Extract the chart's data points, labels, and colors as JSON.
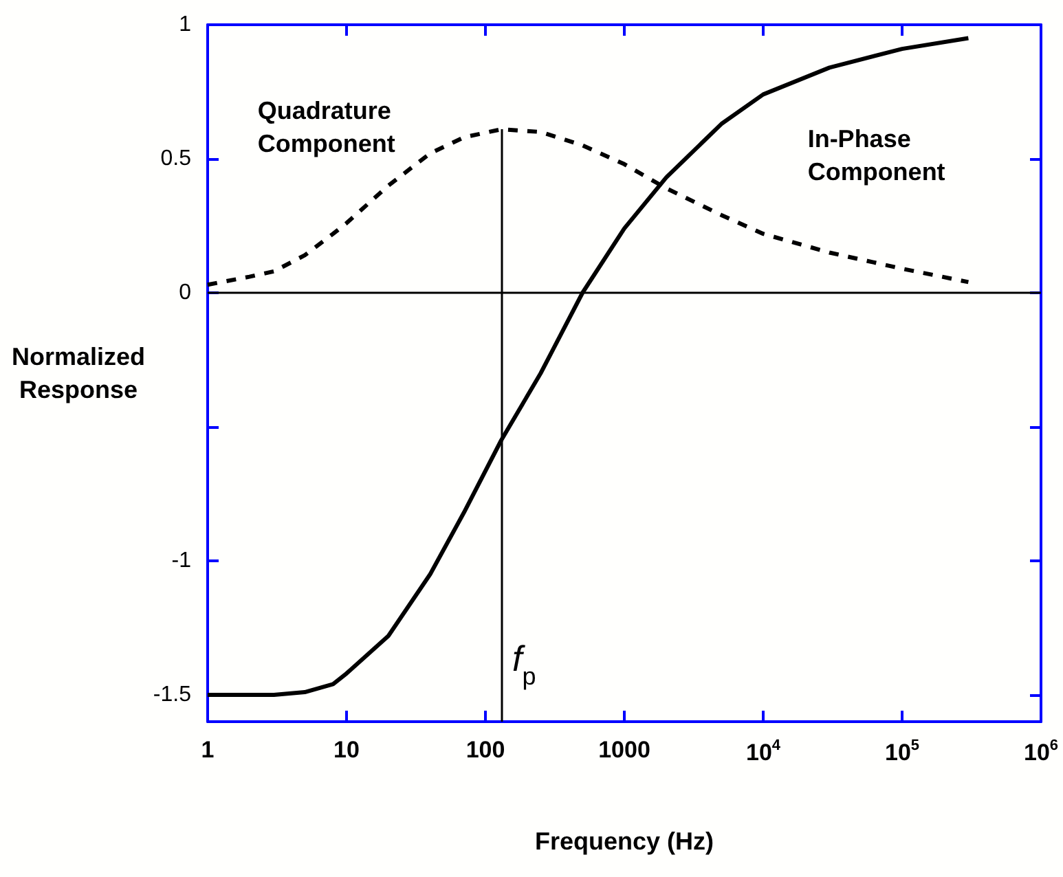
{
  "chart_data": {
    "type": "line",
    "xlabel": "Frequency (Hz)",
    "ylabel": "Normalized Response",
    "log": "x",
    "xlim": [
      1,
      1000000
    ],
    "xticks": [
      1,
      10,
      100,
      1000,
      {
        "value": 10000,
        "label": "10$^{4}$"
      },
      {
        "value": 100000,
        "label": "10$^{5}$"
      },
      {
        "value": 1000000,
        "label": "10$^{6}$"
      }
    ],
    "ylim": [
      -1.6,
      1
    ],
    "yticks": [
      -1.5,
      -1,
      {
        "value": -0.5,
        "label": null
      },
      0,
      0.5,
      1
    ],
    "grid": false,
    "legend": false,
    "marker": "none",
    "x": [
      1,
      2,
      3,
      5,
      8,
      10,
      20,
      40,
      70,
      130,
      250,
      500,
      1000,
      2000,
      5000,
      10000,
      30000,
      100000,
      300000
    ],
    "series": [
      {
        "name": "Quadrature Component",
        "color": "#000000",
        "line_style": "dashed",
        "values": [
          0.03,
          0.06,
          0.08,
          0.14,
          0.22,
          0.26,
          0.4,
          0.52,
          0.58,
          0.61,
          0.6,
          0.55,
          0.48,
          0.39,
          0.29,
          0.22,
          0.15,
          0.09,
          0.04
        ]
      },
      {
        "name": "In-Phase Component",
        "color": "#000000",
        "line_style": "solid",
        "values": [
          -1.5,
          -1.5,
          -1.5,
          -1.49,
          -1.46,
          -1.42,
          -1.28,
          -1.05,
          -0.82,
          -0.55,
          -0.3,
          0.0,
          0.24,
          0.43,
          0.63,
          0.74,
          0.84,
          0.91,
          0.95
        ]
      }
    ],
    "ref_lines": [
      {
        "axis": "y",
        "value": 0,
        "color": "#000000"
      }
    ],
    "annotations": [
      {
        "text": "f$_{p}$",
        "x": 130,
        "y": 0.61
      }
    ]
  }
}
